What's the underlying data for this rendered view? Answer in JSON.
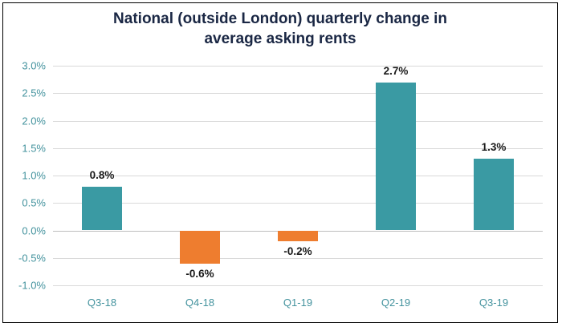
{
  "chart_data": {
    "type": "bar",
    "title": "National (outside London) quarterly change in average asking rents",
    "categories": [
      "Q3-18",
      "Q4-18",
      "Q1-19",
      "Q2-19",
      "Q3-19"
    ],
    "values": [
      0.8,
      -0.6,
      -0.2,
      2.7,
      1.3
    ],
    "value_labels": [
      "0.8%",
      "-0.6%",
      "-0.2%",
      "2.7%",
      "1.3%"
    ],
    "xlabel": "",
    "ylabel": "",
    "ylim": [
      -1.0,
      3.0
    ],
    "ytick_step": 0.5,
    "ytick_labels": [
      "-1.0%",
      "-0.5%",
      "0.0%",
      "0.5%",
      "1.0%",
      "1.5%",
      "2.0%",
      "2.5%",
      "3.0%"
    ],
    "grid": true,
    "legend": "none",
    "colors": {
      "positive_bar": "#3a9aa3",
      "negative_bar": "#ee7d2f",
      "tick_label": "#44939e",
      "title": "#1a2744",
      "gridline": "#d9d9d9",
      "zero_line": "#bdbdbd",
      "value_label": "#1a1a1a"
    }
  }
}
